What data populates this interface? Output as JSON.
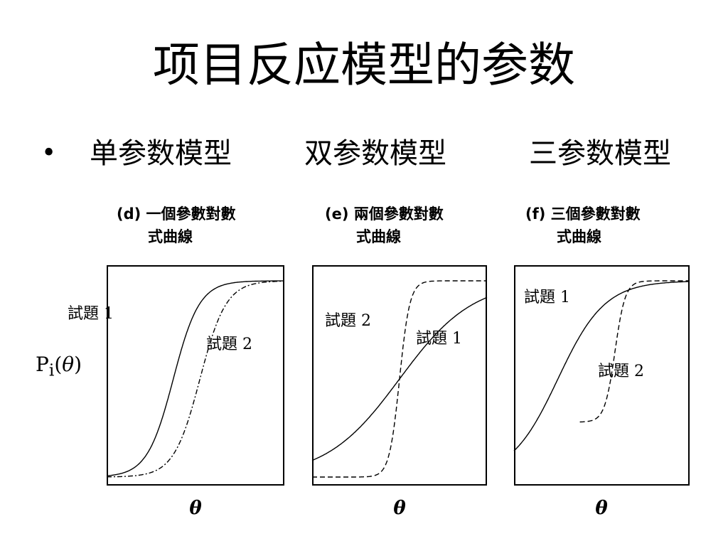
{
  "slide": {
    "title": "项目反应模型的参数",
    "bullet": "•",
    "models": [
      "单参数模型",
      "双参数模型",
      "三参数模型"
    ]
  },
  "axis": {
    "y_label_main": "P",
    "y_label_sub": "i",
    "y_label_open": "(",
    "y_label_theta": "θ",
    "y_label_close": ")",
    "x_label": "θ"
  },
  "chart_data": [
    {
      "type": "line",
      "caption_line1": "(d) 一個參數對數",
      "caption_line2": "式曲線",
      "xlim": [
        -4,
        4
      ],
      "ylim": [
        0,
        1
      ],
      "grid": false,
      "series": [
        {
          "name": "試題 1",
          "line_style": "solid",
          "a": 1.0,
          "b": -1.0,
          "c": 0.0
        },
        {
          "name": "試題 2",
          "line_style": "dashdot",
          "a": 1.0,
          "b": 0.2,
          "c": 0.0
        }
      ]
    },
    {
      "type": "line",
      "caption_line1": "(e) 兩個參數對數",
      "caption_line2": "式曲線",
      "xlim": [
        -4,
        4
      ],
      "ylim": [
        0,
        1
      ],
      "grid": false,
      "series": [
        {
          "name": "試題 2",
          "line_style": "dashed",
          "a": 2.5,
          "b": 0.0,
          "c": 0.0
        },
        {
          "name": "試題 1",
          "line_style": "solid",
          "a": 0.35,
          "b": 0.0,
          "c": 0.0
        }
      ]
    },
    {
      "type": "line",
      "caption_line1": "(f) 三個參數對數",
      "caption_line2": "式曲線",
      "xlim": [
        -4,
        4
      ],
      "ylim": [
        0,
        1
      ],
      "grid": false,
      "series": [
        {
          "name": "試題 1",
          "line_style": "solid",
          "a": 0.55,
          "b": -2.0,
          "c": 0.0
        },
        {
          "name": "試題 2",
          "line_style": "dashed",
          "a": 2.5,
          "b": 0.6,
          "c": 0.28
        }
      ]
    }
  ]
}
